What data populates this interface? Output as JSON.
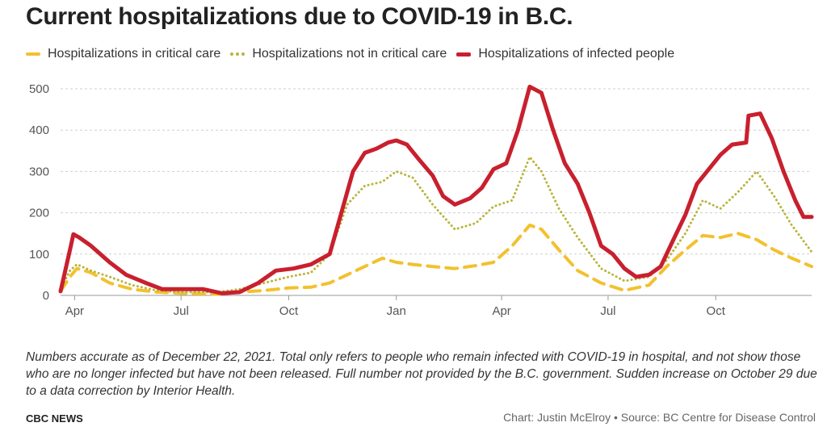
{
  "title": "Current hospitalizations due to COVID-19 in B.C.",
  "note": "Numbers accurate as of December 22, 2021. Total only refers to people who remain infected with COVID-19 in hospital, and not show those who are no longer infected but have not been released. Full number not provided by the B.C. government. Sudden increase on October 29 due to a data correction by Interior Health.",
  "brand": "CBC NEWS",
  "credit": "Chart: Justin McElroy • Source: BC Centre for Disease Control",
  "colors": {
    "critical": "#f2c12e",
    "noncritical": "#b8b53c",
    "total": "#c8202e",
    "grid": "#cfcfcf"
  },
  "chart_data": {
    "type": "line",
    "title": "Current hospitalizations due to COVID-19 in B.C.",
    "xlabel": "",
    "ylabel": "",
    "ylim": [
      0,
      500
    ],
    "yticks": [
      0,
      100,
      200,
      300,
      400,
      500
    ],
    "xlim": [
      "2020-03-20",
      "2021-12-22"
    ],
    "xticks": [
      {
        "date": "2020-04-01",
        "label": "Apr"
      },
      {
        "date": "2020-07-01",
        "label": "Jul"
      },
      {
        "date": "2020-10-01",
        "label": "Oct"
      },
      {
        "date": "2021-01-01",
        "label": "Jan"
      },
      {
        "date": "2021-04-01",
        "label": "Apr"
      },
      {
        "date": "2021-07-01",
        "label": "Jul"
      },
      {
        "date": "2021-10-01",
        "label": "Oct"
      }
    ],
    "grid": true,
    "legend": "top-left",
    "series": [
      {
        "name": "Hospitalizations in critical care",
        "color": "#f2c12e",
        "style": "dashed",
        "points": [
          [
            "2020-03-20",
            10
          ],
          [
            "2020-03-28",
            45
          ],
          [
            "2020-04-03",
            65
          ],
          [
            "2020-04-15",
            55
          ],
          [
            "2020-05-01",
            30
          ],
          [
            "2020-05-20",
            15
          ],
          [
            "2020-06-10",
            8
          ],
          [
            "2020-07-01",
            5
          ],
          [
            "2020-08-01",
            3
          ],
          [
            "2020-08-20",
            8
          ],
          [
            "2020-09-10",
            12
          ],
          [
            "2020-10-01",
            18
          ],
          [
            "2020-10-20",
            20
          ],
          [
            "2020-11-05",
            30
          ],
          [
            "2020-11-20",
            50
          ],
          [
            "2020-12-05",
            70
          ],
          [
            "2020-12-20",
            90
          ],
          [
            "2021-01-01",
            80
          ],
          [
            "2021-01-15",
            75
          ],
          [
            "2021-02-01",
            70
          ],
          [
            "2021-02-20",
            65
          ],
          [
            "2021-03-10",
            72
          ],
          [
            "2021-03-25",
            80
          ],
          [
            "2021-04-10",
            120
          ],
          [
            "2021-04-25",
            170
          ],
          [
            "2021-05-05",
            160
          ],
          [
            "2021-05-20",
            110
          ],
          [
            "2021-06-05",
            60
          ],
          [
            "2021-06-25",
            30
          ],
          [
            "2021-07-15",
            12
          ],
          [
            "2021-08-05",
            25
          ],
          [
            "2021-08-20",
            70
          ],
          [
            "2021-09-05",
            110
          ],
          [
            "2021-09-20",
            145
          ],
          [
            "2021-10-05",
            140
          ],
          [
            "2021-10-20",
            150
          ],
          [
            "2021-11-05",
            135
          ],
          [
            "2021-11-20",
            110
          ],
          [
            "2021-12-05",
            90
          ],
          [
            "2021-12-22",
            70
          ]
        ]
      },
      {
        "name": "Hospitalizations not in critical care",
        "color": "#b8b53c",
        "style": "dotted",
        "points": [
          [
            "2020-03-20",
            15
          ],
          [
            "2020-03-28",
            60
          ],
          [
            "2020-04-03",
            75
          ],
          [
            "2020-04-15",
            60
          ],
          [
            "2020-05-01",
            45
          ],
          [
            "2020-05-20",
            25
          ],
          [
            "2020-06-10",
            12
          ],
          [
            "2020-07-01",
            8
          ],
          [
            "2020-08-01",
            8
          ],
          [
            "2020-08-20",
            15
          ],
          [
            "2020-09-10",
            30
          ],
          [
            "2020-10-01",
            45
          ],
          [
            "2020-10-20",
            55
          ],
          [
            "2020-11-05",
            100
          ],
          [
            "2020-11-20",
            220
          ],
          [
            "2020-12-05",
            265
          ],
          [
            "2020-12-20",
            275
          ],
          [
            "2021-01-01",
            300
          ],
          [
            "2021-01-15",
            285
          ],
          [
            "2021-02-01",
            220
          ],
          [
            "2021-02-20",
            160
          ],
          [
            "2021-03-10",
            175
          ],
          [
            "2021-03-25",
            215
          ],
          [
            "2021-04-10",
            230
          ],
          [
            "2021-04-25",
            335
          ],
          [
            "2021-05-05",
            300
          ],
          [
            "2021-05-20",
            210
          ],
          [
            "2021-06-05",
            140
          ],
          [
            "2021-06-25",
            65
          ],
          [
            "2021-07-15",
            35
          ],
          [
            "2021-08-05",
            45
          ],
          [
            "2021-08-20",
            85
          ],
          [
            "2021-09-05",
            150
          ],
          [
            "2021-09-20",
            230
          ],
          [
            "2021-10-05",
            210
          ],
          [
            "2021-10-20",
            250
          ],
          [
            "2021-11-05",
            300
          ],
          [
            "2021-11-20",
            240
          ],
          [
            "2021-12-05",
            170
          ],
          [
            "2021-12-22",
            105
          ]
        ]
      },
      {
        "name": "Hospitalizations of infected people",
        "color": "#c8202e",
        "style": "solid",
        "points": [
          [
            "2020-03-20",
            10
          ],
          [
            "2020-03-24",
            60
          ],
          [
            "2020-03-28",
            110
          ],
          [
            "2020-03-31",
            148
          ],
          [
            "2020-04-05",
            140
          ],
          [
            "2020-04-15",
            120
          ],
          [
            "2020-05-01",
            80
          ],
          [
            "2020-05-15",
            50
          ],
          [
            "2020-06-01",
            30
          ],
          [
            "2020-06-15",
            15
          ],
          [
            "2020-07-01",
            15
          ],
          [
            "2020-07-20",
            15
          ],
          [
            "2020-08-05",
            5
          ],
          [
            "2020-08-20",
            8
          ],
          [
            "2020-09-05",
            30
          ],
          [
            "2020-09-20",
            60
          ],
          [
            "2020-10-05",
            65
          ],
          [
            "2020-10-20",
            75
          ],
          [
            "2020-11-05",
            100
          ],
          [
            "2020-11-15",
            200
          ],
          [
            "2020-11-25",
            300
          ],
          [
            "2020-12-05",
            345
          ],
          [
            "2020-12-15",
            355
          ],
          [
            "2020-12-25",
            370
          ],
          [
            "2021-01-01",
            375
          ],
          [
            "2021-01-10",
            365
          ],
          [
            "2021-01-20",
            330
          ],
          [
            "2021-02-01",
            290
          ],
          [
            "2021-02-10",
            240
          ],
          [
            "2021-02-20",
            220
          ],
          [
            "2021-03-05",
            235
          ],
          [
            "2021-03-15",
            260
          ],
          [
            "2021-03-25",
            305
          ],
          [
            "2021-04-05",
            320
          ],
          [
            "2021-04-15",
            400
          ],
          [
            "2021-04-25",
            505
          ],
          [
            "2021-05-05",
            490
          ],
          [
            "2021-05-15",
            400
          ],
          [
            "2021-05-25",
            320
          ],
          [
            "2021-06-05",
            270
          ],
          [
            "2021-06-15",
            200
          ],
          [
            "2021-06-25",
            120
          ],
          [
            "2021-07-05",
            100
          ],
          [
            "2021-07-15",
            65
          ],
          [
            "2021-07-25",
            45
          ],
          [
            "2021-08-05",
            50
          ],
          [
            "2021-08-15",
            70
          ],
          [
            "2021-08-25",
            130
          ],
          [
            "2021-09-05",
            195
          ],
          [
            "2021-09-15",
            270
          ],
          [
            "2021-09-25",
            305
          ],
          [
            "2021-10-05",
            340
          ],
          [
            "2021-10-15",
            365
          ],
          [
            "2021-10-27",
            370
          ],
          [
            "2021-10-29",
            435
          ],
          [
            "2021-11-08",
            440
          ],
          [
            "2021-11-18",
            380
          ],
          [
            "2021-11-28",
            300
          ],
          [
            "2021-12-08",
            230
          ],
          [
            "2021-12-15",
            190
          ],
          [
            "2021-12-22",
            190
          ]
        ]
      }
    ]
  }
}
